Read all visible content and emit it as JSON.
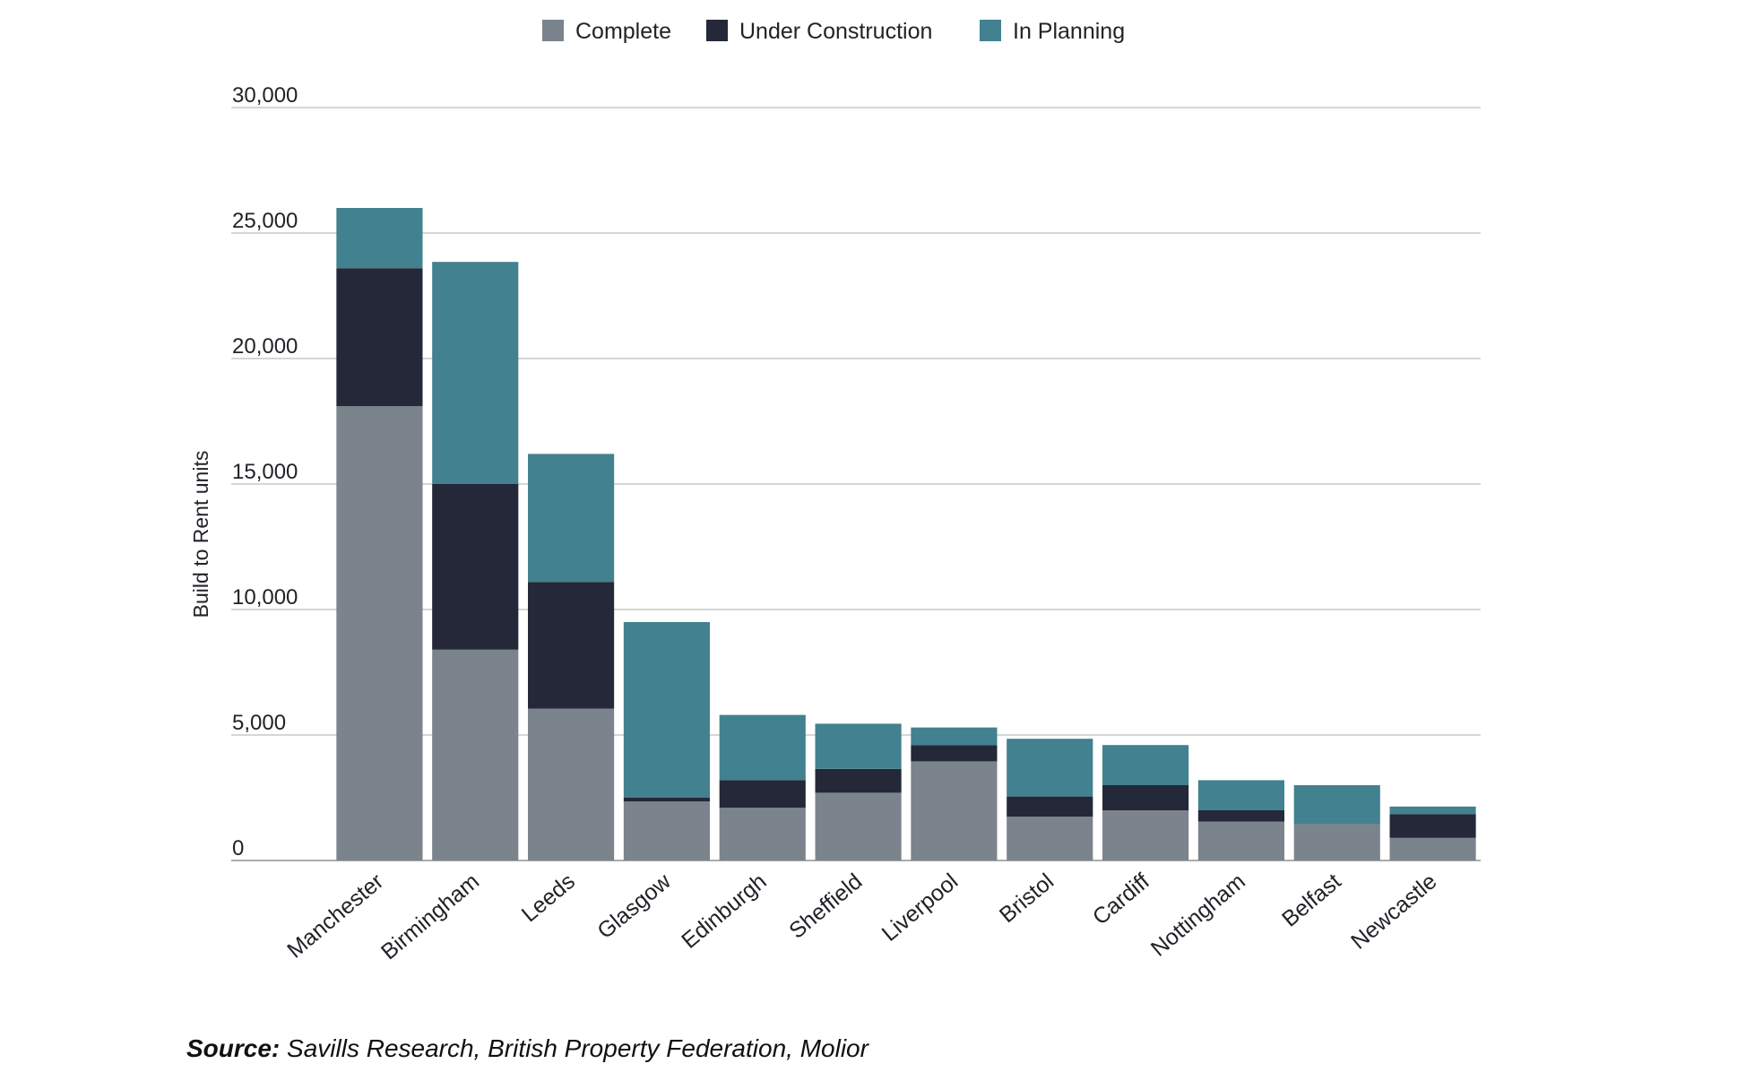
{
  "chart_data": {
    "type": "bar",
    "stacked": true,
    "categories": [
      "Manchester",
      "Birmingham",
      "Leeds",
      "Glasgow",
      "Edinburgh",
      "Sheffield",
      "Liverpool",
      "Bristol",
      "Cardiff",
      "Nottingham",
      "Belfast",
      "Newcastle"
    ],
    "series": [
      {
        "name": "Complete",
        "color": "#7b838c",
        "values": [
          18100,
          8400,
          6050,
          2350,
          2100,
          2700,
          3950,
          1750,
          2000,
          1550,
          1450,
          900
        ]
      },
      {
        "name": "Under Construction",
        "color": "#252838",
        "values": [
          5500,
          6600,
          5050,
          150,
          1100,
          950,
          650,
          800,
          1000,
          450,
          0,
          950
        ]
      },
      {
        "name": "In Planning",
        "color": "#42818f",
        "values": [
          2400,
          8850,
          5100,
          7000,
          2600,
          1800,
          700,
          2300,
          1600,
          1200,
          1550,
          300
        ]
      }
    ],
    "title": "",
    "xlabel": "",
    "ylabel": "Build to Rent units",
    "ylim": [
      0,
      30000
    ],
    "yticks": [
      0,
      5000,
      10000,
      15000,
      20000,
      25000,
      30000
    ],
    "ytick_labels": [
      "0",
      "5,000",
      "10,000",
      "15,000",
      "20,000",
      "25,000",
      "30,000"
    ],
    "grid": true,
    "legend_position": "top-center"
  },
  "source": {
    "label": "Source:",
    "text": " Savills Research, British Property Federation, Molior"
  }
}
